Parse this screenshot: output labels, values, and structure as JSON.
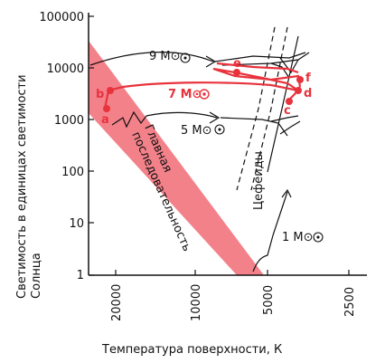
{
  "diagram": {
    "y_axis_label_line1": "Светимость в единицах светимости",
    "y_axis_label_line2": "Солнца",
    "x_axis_label": "Температура поверхности, К",
    "y_ticks": [
      "100000",
      "10000",
      "1000",
      "100",
      "10",
      "1"
    ],
    "x_ticks": [
      "20000",
      "10000",
      "5000",
      "2500"
    ],
    "main_sequence_label_line1": "Главная",
    "main_sequence_label_line2": "последовательность",
    "cepheids_label": "Цефеиды",
    "tracks": [
      {
        "mass": "9 M⊙",
        "mass_number": 9,
        "color": "#111111"
      },
      {
        "mass": "7 M⊙",
        "mass_number": 7,
        "color": "#e8333d"
      },
      {
        "mass": "5 M⊙",
        "mass_number": 5,
        "color": "#111111"
      },
      {
        "mass": "1 M⊙",
        "mass_number": 1,
        "color": "#111111"
      }
    ],
    "points": [
      "a",
      "b",
      "c",
      "d",
      "e",
      "f"
    ],
    "colors": {
      "accent_red": "#e8333d",
      "band_fill": "#f27a84",
      "ink": "#111111"
    }
  }
}
